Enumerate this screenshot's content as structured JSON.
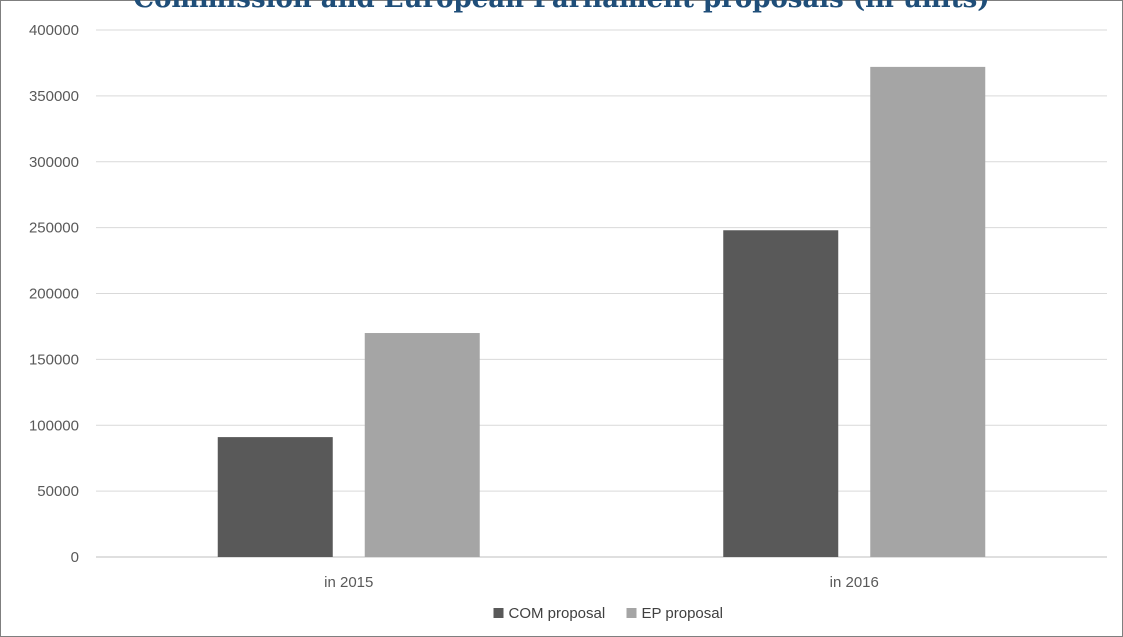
{
  "chart_data": {
    "type": "bar",
    "title": "Commission and European Parliament proposals (in units)",
    "categories": [
      "in 2015",
      "in 2016"
    ],
    "series": [
      {
        "name": "COM proposal",
        "values": [
          91000,
          248000
        ],
        "color": "#595959"
      },
      {
        "name": "EP proposal",
        "values": [
          170000,
          372000
        ],
        "color": "#a5a5a5"
      }
    ],
    "ylim": [
      0,
      400000
    ],
    "yticks": [
      "400000",
      "350000",
      "300000",
      "250000",
      "200000",
      "150000",
      "100000",
      "50000",
      "0"
    ],
    "ytick_values": [
      400000,
      350000,
      300000,
      250000,
      200000,
      150000,
      100000,
      50000,
      0
    ],
    "xlabel": "",
    "ylabel": "",
    "grid": true,
    "legend": "bottom-center",
    "gridline_color": "#d9d9d9"
  }
}
